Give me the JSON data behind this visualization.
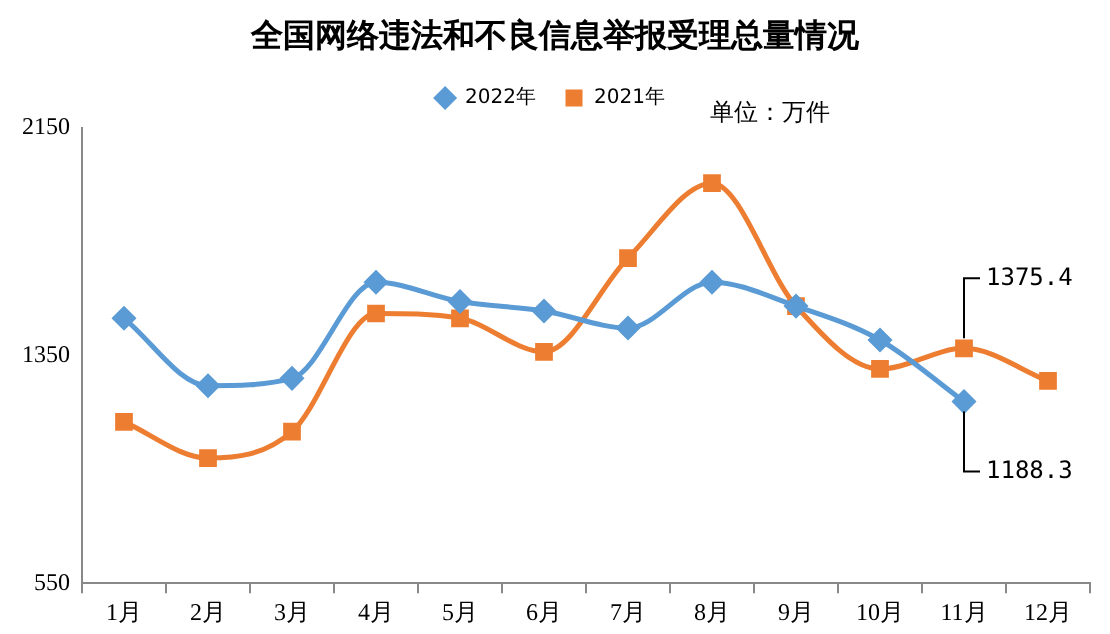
{
  "chart_data": {
    "type": "line",
    "title": "全国网络违法和不良信息举报受理总量情况",
    "categories": [
      "1月",
      "2月",
      "3月",
      "4月",
      "5月",
      "6月",
      "7月",
      "8月",
      "9月",
      "10月",
      "11月",
      "12月"
    ],
    "series": [
      {
        "name": "2021年",
        "color": "#ed7d31",
        "marker": "square",
        "values": [
          1117,
          990,
          1083,
          1498,
          1481,
          1363,
          1693,
          1956,
          1524,
          1303,
          1375.4,
          1261
        ]
      },
      {
        "name": "2022年",
        "color": "#5b9bd5",
        "marker": "diamond",
        "values": [
          1481,
          1244,
          1270,
          1608,
          1540,
          1507,
          1447,
          1608,
          1524,
          1405,
          1188.3,
          null
        ]
      }
    ],
    "ylim": [
      550,
      2150
    ],
    "yticks": [
      550,
      1350,
      2150
    ],
    "grid": false,
    "legend": "top",
    "annotations": [
      "单位：万件",
      {
        "text": "1375.4",
        "x": "11月",
        "y": 1375.4
      },
      {
        "text": "1188.3",
        "x": "11月",
        "y": 1188.3
      }
    ]
  }
}
